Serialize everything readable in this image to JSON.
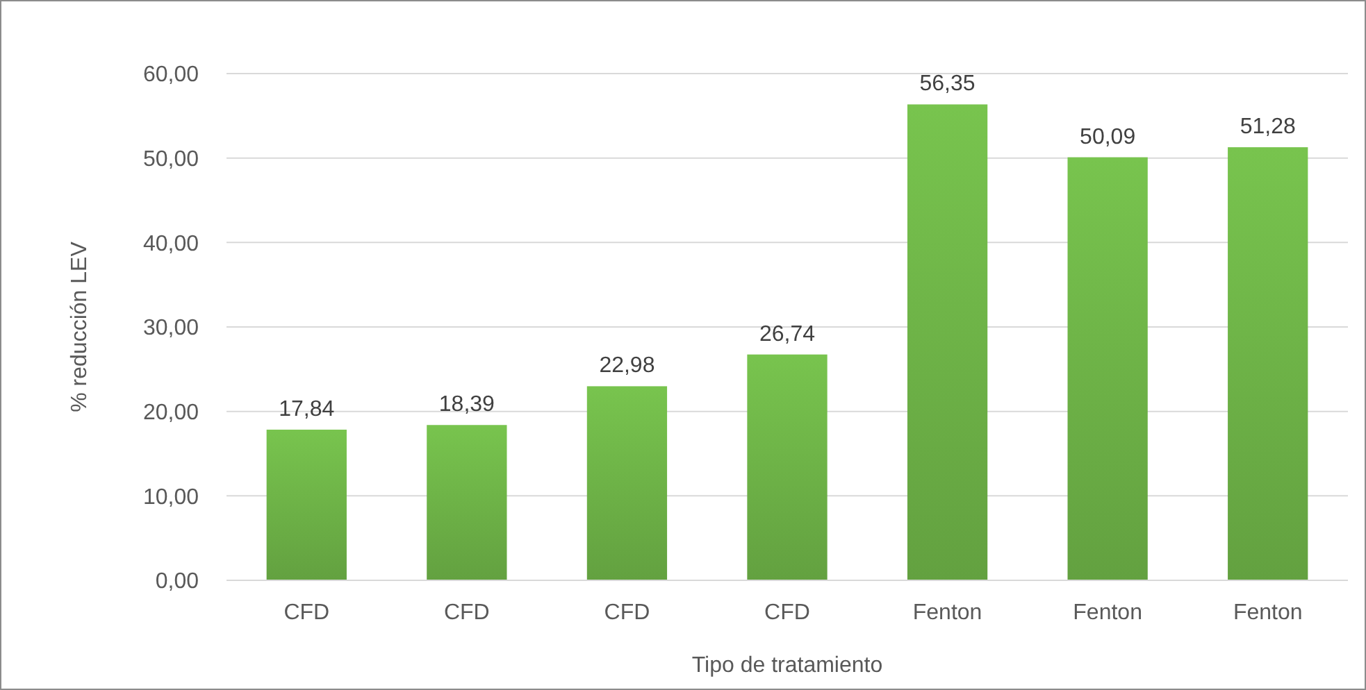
{
  "chart_data": {
    "type": "bar",
    "xlabel": "Tipo de tratamiento",
    "ylabel": "% reducción LEV",
    "categories": [
      "CFD",
      "CFD",
      "CFD",
      "CFD",
      "Fenton",
      "Fenton",
      "Fenton"
    ],
    "values": [
      17.84,
      18.39,
      22.98,
      26.74,
      56.35,
      50.09,
      51.28
    ],
    "value_labels": [
      "17,84",
      "18,39",
      "22,98",
      "26,74",
      "56,35",
      "50,09",
      "51,28"
    ],
    "color": "#6aad45",
    "ylim": [
      0,
      60
    ],
    "yticks": [
      {
        "value": 0,
        "label": "0,00"
      },
      {
        "value": 10,
        "label": "10,00"
      },
      {
        "value": 20,
        "label": "20,00"
      },
      {
        "value": 30,
        "label": "30,00"
      },
      {
        "value": 40,
        "label": "40,00"
      },
      {
        "value": 50,
        "label": "50,00"
      },
      {
        "value": 60,
        "label": "60,00"
      }
    ],
    "grid": "y"
  }
}
